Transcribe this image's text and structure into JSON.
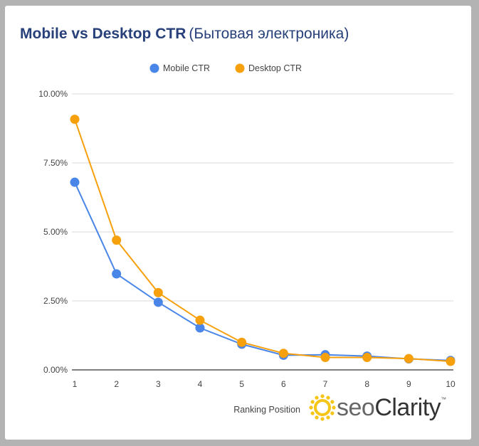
{
  "title": {
    "main": "Mobile vs Desktop CTR",
    "sub": "(Бытовая электроника)"
  },
  "branding": {
    "logo_prefix": "seo",
    "logo_name": "Clarity",
    "logo_mark": "™",
    "sun_icon_color": "#f5c518"
  },
  "chart_data": {
    "type": "line",
    "title": "Mobile vs Desktop CTR (Бытовая электроника)",
    "xlabel": "Ranking Position",
    "ylabel": "",
    "x": [
      1,
      2,
      3,
      4,
      5,
      6,
      7,
      8,
      9,
      10
    ],
    "x_tick_labels": [
      "1",
      "2",
      "3",
      "4",
      "5",
      "6",
      "7",
      "8",
      "9",
      "10"
    ],
    "ylim": [
      0,
      10
    ],
    "y_ticks": [
      0,
      2.5,
      5,
      7.5,
      10
    ],
    "y_tick_labels": [
      "0.00%",
      "2.50%",
      "5.00%",
      "7.50%",
      "10.00%"
    ],
    "grid": true,
    "legend_position": "top",
    "series": [
      {
        "name": "Mobile CTR",
        "color": "#4a86e8",
        "values": [
          6.8,
          3.48,
          2.45,
          1.52,
          0.93,
          0.53,
          0.55,
          0.5,
          0.4,
          0.34
        ]
      },
      {
        "name": "Desktop CTR",
        "color": "#f6a00c",
        "values": [
          9.08,
          4.7,
          2.8,
          1.8,
          1.0,
          0.6,
          0.45,
          0.45,
          0.41,
          0.31
        ]
      }
    ]
  }
}
